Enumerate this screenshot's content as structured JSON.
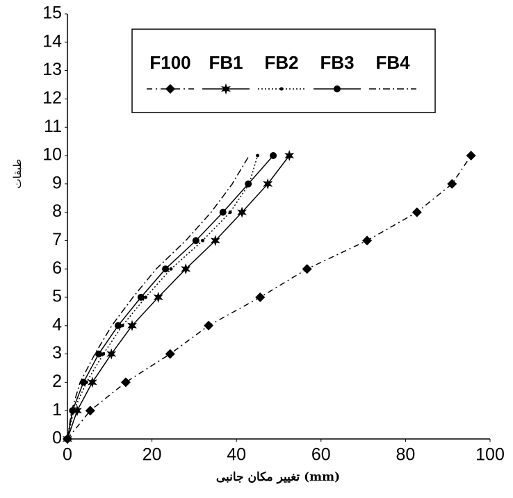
{
  "chart_data": {
    "type": "line",
    "x_label": "تغییر مکان جانبی (mm)",
    "y_label": "طبقات",
    "xlim": [
      0,
      100
    ],
    "xticks": [
      0,
      20,
      40,
      60,
      80,
      100
    ],
    "ylim": [
      0,
      15
    ],
    "yticks": [
      0,
      1,
      2,
      3,
      4,
      5,
      6,
      7,
      8,
      9,
      10,
      11,
      12,
      13,
      14,
      15
    ],
    "legend": "top",
    "series": [
      {
        "name": "F100",
        "color": "#000000",
        "marker": "diamond",
        "dash": "8 5 2 5",
        "x": [
          0,
          5.4,
          13.8,
          24.3,
          33.4,
          45.6,
          56.7,
          70.9,
          82.7,
          91,
          95.5
        ],
        "values": [
          0,
          1,
          2,
          3,
          4,
          5,
          6,
          7,
          8,
          9,
          10
        ]
      },
      {
        "name": "FB1",
        "color": "#000000",
        "marker": "star",
        "dash": "none",
        "x": [
          0,
          2.3,
          5.9,
          10.4,
          15.3,
          21.5,
          28,
          35,
          41.3,
          47.4,
          52.5
        ],
        "values": [
          0,
          1,
          2,
          3,
          4,
          5,
          6,
          7,
          8,
          9,
          10
        ]
      },
      {
        "name": "FB2",
        "color": "#000000",
        "marker": "dot",
        "dash": "2 3",
        "x": [
          0,
          1.5,
          4.5,
          8.5,
          13,
          18.5,
          24.5,
          32,
          38.5,
          43,
          45
        ],
        "values": [
          0,
          1,
          2,
          3,
          4,
          5,
          6,
          7,
          8,
          9,
          10
        ]
      },
      {
        "name": "FB3",
        "color": "#000000",
        "marker": "circle",
        "dash": "none",
        "x": [
          0,
          1.2,
          3.8,
          7.4,
          12,
          17.4,
          23.2,
          30.4,
          36.8,
          42.8,
          48.7
        ],
        "values": [
          0,
          1,
          2,
          3,
          4,
          5,
          6,
          7,
          8,
          9,
          10
        ]
      },
      {
        "name": "FB4",
        "color": "#000000",
        "marker": "none",
        "dash": "10 4 2 4",
        "x": [
          0,
          1,
          3,
          6.5,
          10.5,
          15.5,
          21,
          28,
          34,
          39,
          43
        ],
        "values": [
          0,
          1,
          2,
          3,
          4,
          5,
          6,
          7,
          8,
          9,
          10
        ]
      }
    ]
  }
}
